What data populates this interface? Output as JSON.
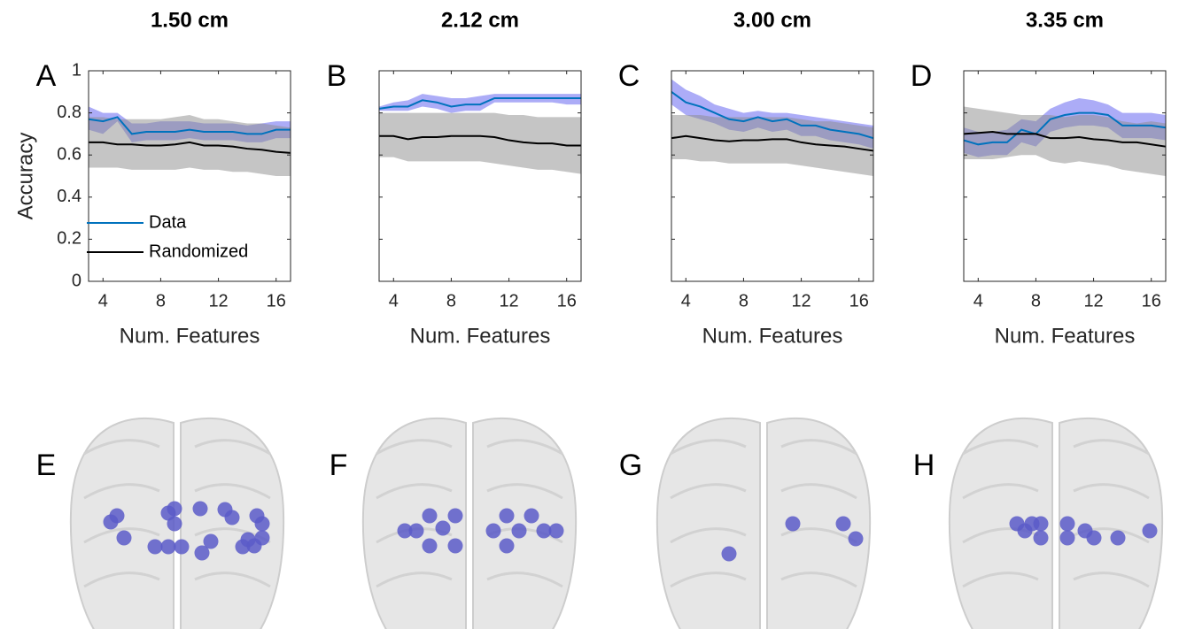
{
  "chart_data": [
    {
      "type": "line",
      "title": "1.50 cm",
      "panel": "A",
      "ylabel": "Accuracy",
      "xlabel": "Num. Features",
      "legend": "lower left",
      "ytick_labels": true,
      "x": [
        3,
        4,
        5,
        6,
        7,
        8,
        9,
        10,
        11,
        12,
        13,
        14,
        15,
        16,
        17
      ],
      "xlim": [
        3,
        17
      ],
      "xticks": [
        4,
        8,
        12,
        16
      ],
      "ylim": [
        0,
        1
      ],
      "yticks": [
        0,
        0.2,
        0.4,
        0.6,
        0.8,
        1
      ],
      "series": [
        {
          "name": "Data",
          "color": "#0072bd",
          "band_color": "#5a5af0",
          "values": [
            0.77,
            0.76,
            0.78,
            0.7,
            0.71,
            0.71,
            0.71,
            0.72,
            0.71,
            0.71,
            0.71,
            0.7,
            0.7,
            0.72,
            0.72
          ],
          "upper": [
            0.83,
            0.8,
            0.8,
            0.75,
            0.75,
            0.76,
            0.76,
            0.76,
            0.75,
            0.75,
            0.75,
            0.74,
            0.75,
            0.76,
            0.76
          ],
          "lower": [
            0.72,
            0.7,
            0.76,
            0.66,
            0.67,
            0.67,
            0.67,
            0.68,
            0.67,
            0.67,
            0.67,
            0.66,
            0.66,
            0.68,
            0.68
          ]
        },
        {
          "name": "Randomized",
          "color": "#000000",
          "band_color": "#8c8c8c",
          "values": [
            0.66,
            0.66,
            0.65,
            0.65,
            0.645,
            0.645,
            0.65,
            0.66,
            0.645,
            0.645,
            0.64,
            0.63,
            0.625,
            0.615,
            0.61
          ],
          "upper": [
            0.78,
            0.78,
            0.77,
            0.77,
            0.77,
            0.77,
            0.78,
            0.79,
            0.77,
            0.77,
            0.76,
            0.75,
            0.75,
            0.74,
            0.73
          ],
          "lower": [
            0.54,
            0.54,
            0.54,
            0.53,
            0.53,
            0.53,
            0.53,
            0.54,
            0.53,
            0.53,
            0.52,
            0.52,
            0.51,
            0.5,
            0.5
          ]
        }
      ]
    },
    {
      "type": "line",
      "title": "2.12 cm",
      "panel": "B",
      "xlabel": "Num. Features",
      "ytick_labels": false,
      "x": [
        3,
        4,
        5,
        6,
        7,
        8,
        9,
        10,
        11,
        12,
        13,
        14,
        15,
        16,
        17
      ],
      "xlim": [
        3,
        17
      ],
      "xticks": [
        4,
        8,
        12,
        16
      ],
      "ylim": [
        0,
        1
      ],
      "yticks": [
        0,
        0.2,
        0.4,
        0.6,
        0.8,
        1
      ],
      "series": [
        {
          "color": "#0072bd",
          "band_color": "#5a5af0",
          "values": [
            0.82,
            0.83,
            0.83,
            0.86,
            0.85,
            0.83,
            0.84,
            0.84,
            0.87,
            0.87,
            0.87,
            0.87,
            0.87,
            0.87,
            0.87
          ],
          "upper": [
            0.83,
            0.85,
            0.86,
            0.89,
            0.88,
            0.87,
            0.87,
            0.88,
            0.89,
            0.89,
            0.89,
            0.89,
            0.89,
            0.89,
            0.89
          ],
          "lower": [
            0.81,
            0.81,
            0.81,
            0.83,
            0.82,
            0.8,
            0.81,
            0.81,
            0.85,
            0.85,
            0.85,
            0.85,
            0.85,
            0.84,
            0.84
          ]
        },
        {
          "color": "#000000",
          "band_color": "#8c8c8c",
          "values": [
            0.69,
            0.69,
            0.675,
            0.685,
            0.685,
            0.69,
            0.69,
            0.69,
            0.685,
            0.67,
            0.66,
            0.655,
            0.655,
            0.645,
            0.645
          ],
          "upper": [
            0.8,
            0.8,
            0.8,
            0.8,
            0.8,
            0.8,
            0.8,
            0.8,
            0.8,
            0.79,
            0.79,
            0.78,
            0.78,
            0.78,
            0.78
          ],
          "lower": [
            0.59,
            0.59,
            0.57,
            0.57,
            0.57,
            0.57,
            0.57,
            0.57,
            0.56,
            0.55,
            0.54,
            0.53,
            0.53,
            0.52,
            0.51
          ]
        }
      ]
    },
    {
      "type": "line",
      "title": "3.00 cm",
      "panel": "C",
      "xlabel": "Num. Features",
      "ytick_labels": false,
      "x": [
        3,
        4,
        5,
        6,
        7,
        8,
        9,
        10,
        11,
        12,
        13,
        14,
        15,
        16,
        17
      ],
      "xlim": [
        3,
        17
      ],
      "xticks": [
        4,
        8,
        12,
        16
      ],
      "ylim": [
        0,
        1
      ],
      "yticks": [
        0,
        0.2,
        0.4,
        0.6,
        0.8,
        1
      ],
      "series": [
        {
          "color": "#0072bd",
          "band_color": "#5a5af0",
          "values": [
            0.9,
            0.85,
            0.83,
            0.8,
            0.77,
            0.76,
            0.78,
            0.76,
            0.77,
            0.74,
            0.74,
            0.72,
            0.71,
            0.7,
            0.68
          ],
          "upper": [
            0.96,
            0.91,
            0.88,
            0.84,
            0.82,
            0.8,
            0.81,
            0.8,
            0.8,
            0.79,
            0.78,
            0.77,
            0.76,
            0.75,
            0.74
          ],
          "lower": [
            0.84,
            0.79,
            0.77,
            0.75,
            0.72,
            0.71,
            0.73,
            0.71,
            0.72,
            0.69,
            0.69,
            0.67,
            0.66,
            0.65,
            0.63
          ]
        },
        {
          "color": "#000000",
          "band_color": "#8c8c8c",
          "values": [
            0.68,
            0.69,
            0.68,
            0.67,
            0.665,
            0.67,
            0.67,
            0.675,
            0.675,
            0.66,
            0.65,
            0.645,
            0.64,
            0.63,
            0.62
          ],
          "upper": [
            0.79,
            0.79,
            0.79,
            0.78,
            0.78,
            0.78,
            0.78,
            0.78,
            0.78,
            0.77,
            0.76,
            0.76,
            0.75,
            0.74,
            0.73
          ],
          "lower": [
            0.58,
            0.58,
            0.57,
            0.57,
            0.56,
            0.56,
            0.56,
            0.56,
            0.56,
            0.55,
            0.54,
            0.53,
            0.52,
            0.51,
            0.5
          ]
        }
      ]
    },
    {
      "type": "line",
      "title": "3.35 cm",
      "panel": "D",
      "xlabel": "Num. Features",
      "ytick_labels": false,
      "x": [
        3,
        4,
        5,
        6,
        7,
        8,
        9,
        10,
        11,
        12,
        13,
        14,
        15,
        16,
        17
      ],
      "xlim": [
        3,
        17
      ],
      "xticks": [
        4,
        8,
        12,
        16
      ],
      "ylim": [
        0,
        1
      ],
      "yticks": [
        0,
        0.2,
        0.4,
        0.6,
        0.8,
        1
      ],
      "series": [
        {
          "color": "#0072bd",
          "band_color": "#5a5af0",
          "values": [
            0.67,
            0.65,
            0.66,
            0.66,
            0.72,
            0.7,
            0.77,
            0.79,
            0.8,
            0.8,
            0.79,
            0.74,
            0.74,
            0.74,
            0.73
          ],
          "upper": [
            0.73,
            0.71,
            0.71,
            0.72,
            0.77,
            0.76,
            0.82,
            0.85,
            0.87,
            0.86,
            0.84,
            0.8,
            0.8,
            0.8,
            0.79
          ],
          "lower": [
            0.61,
            0.59,
            0.6,
            0.6,
            0.66,
            0.64,
            0.71,
            0.73,
            0.74,
            0.74,
            0.73,
            0.68,
            0.68,
            0.68,
            0.67
          ]
        },
        {
          "color": "#000000",
          "band_color": "#8c8c8c",
          "values": [
            0.7,
            0.705,
            0.71,
            0.7,
            0.7,
            0.7,
            0.68,
            0.68,
            0.685,
            0.675,
            0.67,
            0.66,
            0.66,
            0.65,
            0.64
          ],
          "upper": [
            0.83,
            0.82,
            0.81,
            0.8,
            0.79,
            0.79,
            0.79,
            0.78,
            0.79,
            0.79,
            0.78,
            0.76,
            0.75,
            0.76,
            0.75
          ],
          "lower": [
            0.58,
            0.58,
            0.58,
            0.59,
            0.6,
            0.6,
            0.57,
            0.56,
            0.57,
            0.56,
            0.55,
            0.53,
            0.52,
            0.51,
            0.5
          ]
        }
      ]
    }
  ],
  "brain_panels": [
    {
      "label": "E"
    },
    {
      "label": "F"
    },
    {
      "label": "G"
    },
    {
      "label": "H"
    }
  ]
}
